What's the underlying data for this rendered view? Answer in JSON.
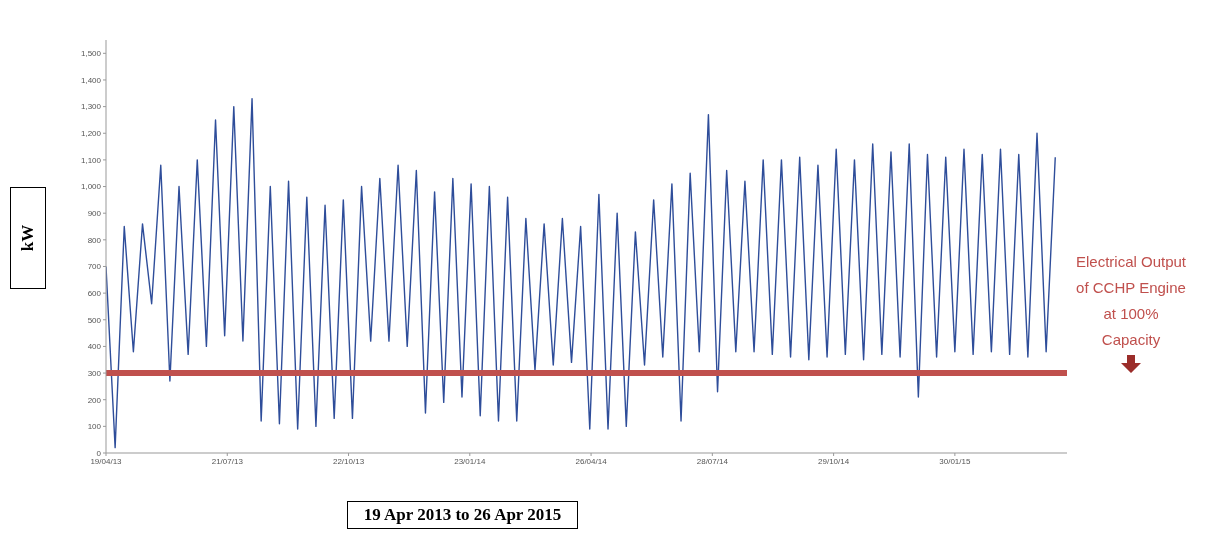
{
  "chart_data": {
    "type": "line",
    "xlabel": "19 Apr 2013 to 26 Apr 2015",
    "ylabel": "kW",
    "x": [
      "2013-04-19",
      "2013-04-26",
      "2013-05-03",
      "2013-05-10",
      "2013-05-17",
      "2013-05-24",
      "2013-05-31",
      "2013-06-07",
      "2013-06-14",
      "2013-06-21",
      "2013-06-28",
      "2013-07-05",
      "2013-07-12",
      "2013-07-19",
      "2013-07-26",
      "2013-08-02",
      "2013-08-09",
      "2013-08-16",
      "2013-08-23",
      "2013-08-30",
      "2013-09-06",
      "2013-09-13",
      "2013-09-20",
      "2013-09-27",
      "2013-10-04",
      "2013-10-11",
      "2013-10-18",
      "2013-10-25",
      "2013-11-01",
      "2013-11-08",
      "2013-11-15",
      "2013-11-22",
      "2013-11-29",
      "2013-12-06",
      "2013-12-13",
      "2013-12-20",
      "2013-12-27",
      "2014-01-03",
      "2014-01-10",
      "2014-01-17",
      "2014-01-24",
      "2014-01-31",
      "2014-02-07",
      "2014-02-14",
      "2014-02-21",
      "2014-02-28",
      "2014-03-07",
      "2014-03-14",
      "2014-03-21",
      "2014-03-28",
      "2014-04-04",
      "2014-04-11",
      "2014-04-18",
      "2014-04-25",
      "2014-05-02",
      "2014-05-09",
      "2014-05-16",
      "2014-05-23",
      "2014-05-30",
      "2014-06-06",
      "2014-06-13",
      "2014-06-20",
      "2014-06-27",
      "2014-07-04",
      "2014-07-11",
      "2014-07-18",
      "2014-07-25",
      "2014-08-01",
      "2014-08-08",
      "2014-08-15",
      "2014-08-22",
      "2014-08-29",
      "2014-09-05",
      "2014-09-12",
      "2014-09-19",
      "2014-09-26",
      "2014-10-03",
      "2014-10-10",
      "2014-10-17",
      "2014-10-24",
      "2014-10-31",
      "2014-11-07",
      "2014-11-14",
      "2014-11-21",
      "2014-11-28",
      "2014-12-05",
      "2014-12-12",
      "2014-12-19",
      "2014-12-26",
      "2015-01-02",
      "2015-01-09",
      "2015-01-16",
      "2015-01-23",
      "2015-01-30",
      "2015-02-06",
      "2015-02-13",
      "2015-02-20",
      "2015-02-27",
      "2015-03-06",
      "2015-03-13",
      "2015-03-20",
      "2015-03-27",
      "2015-04-03",
      "2015-04-10",
      "2015-04-17"
    ],
    "series": [
      {
        "color": "#2e4d9a",
        "values": [
          700,
          20,
          850,
          380,
          860,
          560,
          1080,
          270,
          1000,
          370,
          1100,
          400,
          1250,
          440,
          1300,
          420,
          1330,
          120,
          1000,
          110,
          1020,
          90,
          960,
          100,
          930,
          130,
          950,
          130,
          1000,
          420,
          1030,
          420,
          1080,
          400,
          1060,
          150,
          980,
          190,
          1030,
          210,
          1010,
          140,
          1000,
          120,
          960,
          120,
          880,
          310,
          860,
          330,
          880,
          340,
          850,
          90,
          970,
          90,
          900,
          100,
          830,
          330,
          950,
          360,
          1010,
          120,
          1050,
          380,
          1270,
          230,
          1060,
          380,
          1020,
          380,
          1100,
          370,
          1100,
          360,
          1110,
          350,
          1080,
          360,
          1140,
          370,
          1100,
          350,
          1160,
          370,
          1130,
          360,
          1160,
          210,
          1120,
          360,
          1110,
          380,
          1140,
          370,
          1120,
          380,
          1140,
          370,
          1120,
          360,
          1200,
          380,
          1110
        ]
      }
    ],
    "xlim": [
      "2013-04-19",
      "2015-04-26"
    ],
    "xticks": [
      {
        "value": "2013-04-19",
        "label": "19/04/13"
      },
      {
        "value": "2013-07-21",
        "label": "21/07/13"
      },
      {
        "value": "2013-10-22",
        "label": "22/10/13"
      },
      {
        "value": "2014-01-23",
        "label": "23/01/14"
      },
      {
        "value": "2014-04-26",
        "label": "26/04/14"
      },
      {
        "value": "2014-07-28",
        "label": "28/07/14"
      },
      {
        "value": "2014-10-29",
        "label": "29/10/14"
      },
      {
        "value": "2015-01-30",
        "label": "30/01/15"
      }
    ],
    "ylim": [
      0,
      1550
    ],
    "yticks": [
      0,
      100,
      200,
      300,
      400,
      500,
      600,
      700,
      800,
      900,
      {
        "value": 1000,
        "label": "1,000"
      },
      {
        "value": 1100,
        "label": "1,100"
      },
      {
        "value": 1200,
        "label": "1,200"
      },
      {
        "value": 1300,
        "label": "1,300"
      },
      {
        "value": 1400,
        "label": "1,400"
      },
      {
        "value": 1500,
        "label": "1,500"
      }
    ],
    "ref_lines": [
      {
        "axis": "y",
        "value": 300,
        "label": "Electrical Output of CCHP Engine at 100% Capacity",
        "color": "#c0504d"
      }
    ],
    "marker": "none",
    "line_style": "solid"
  }
}
